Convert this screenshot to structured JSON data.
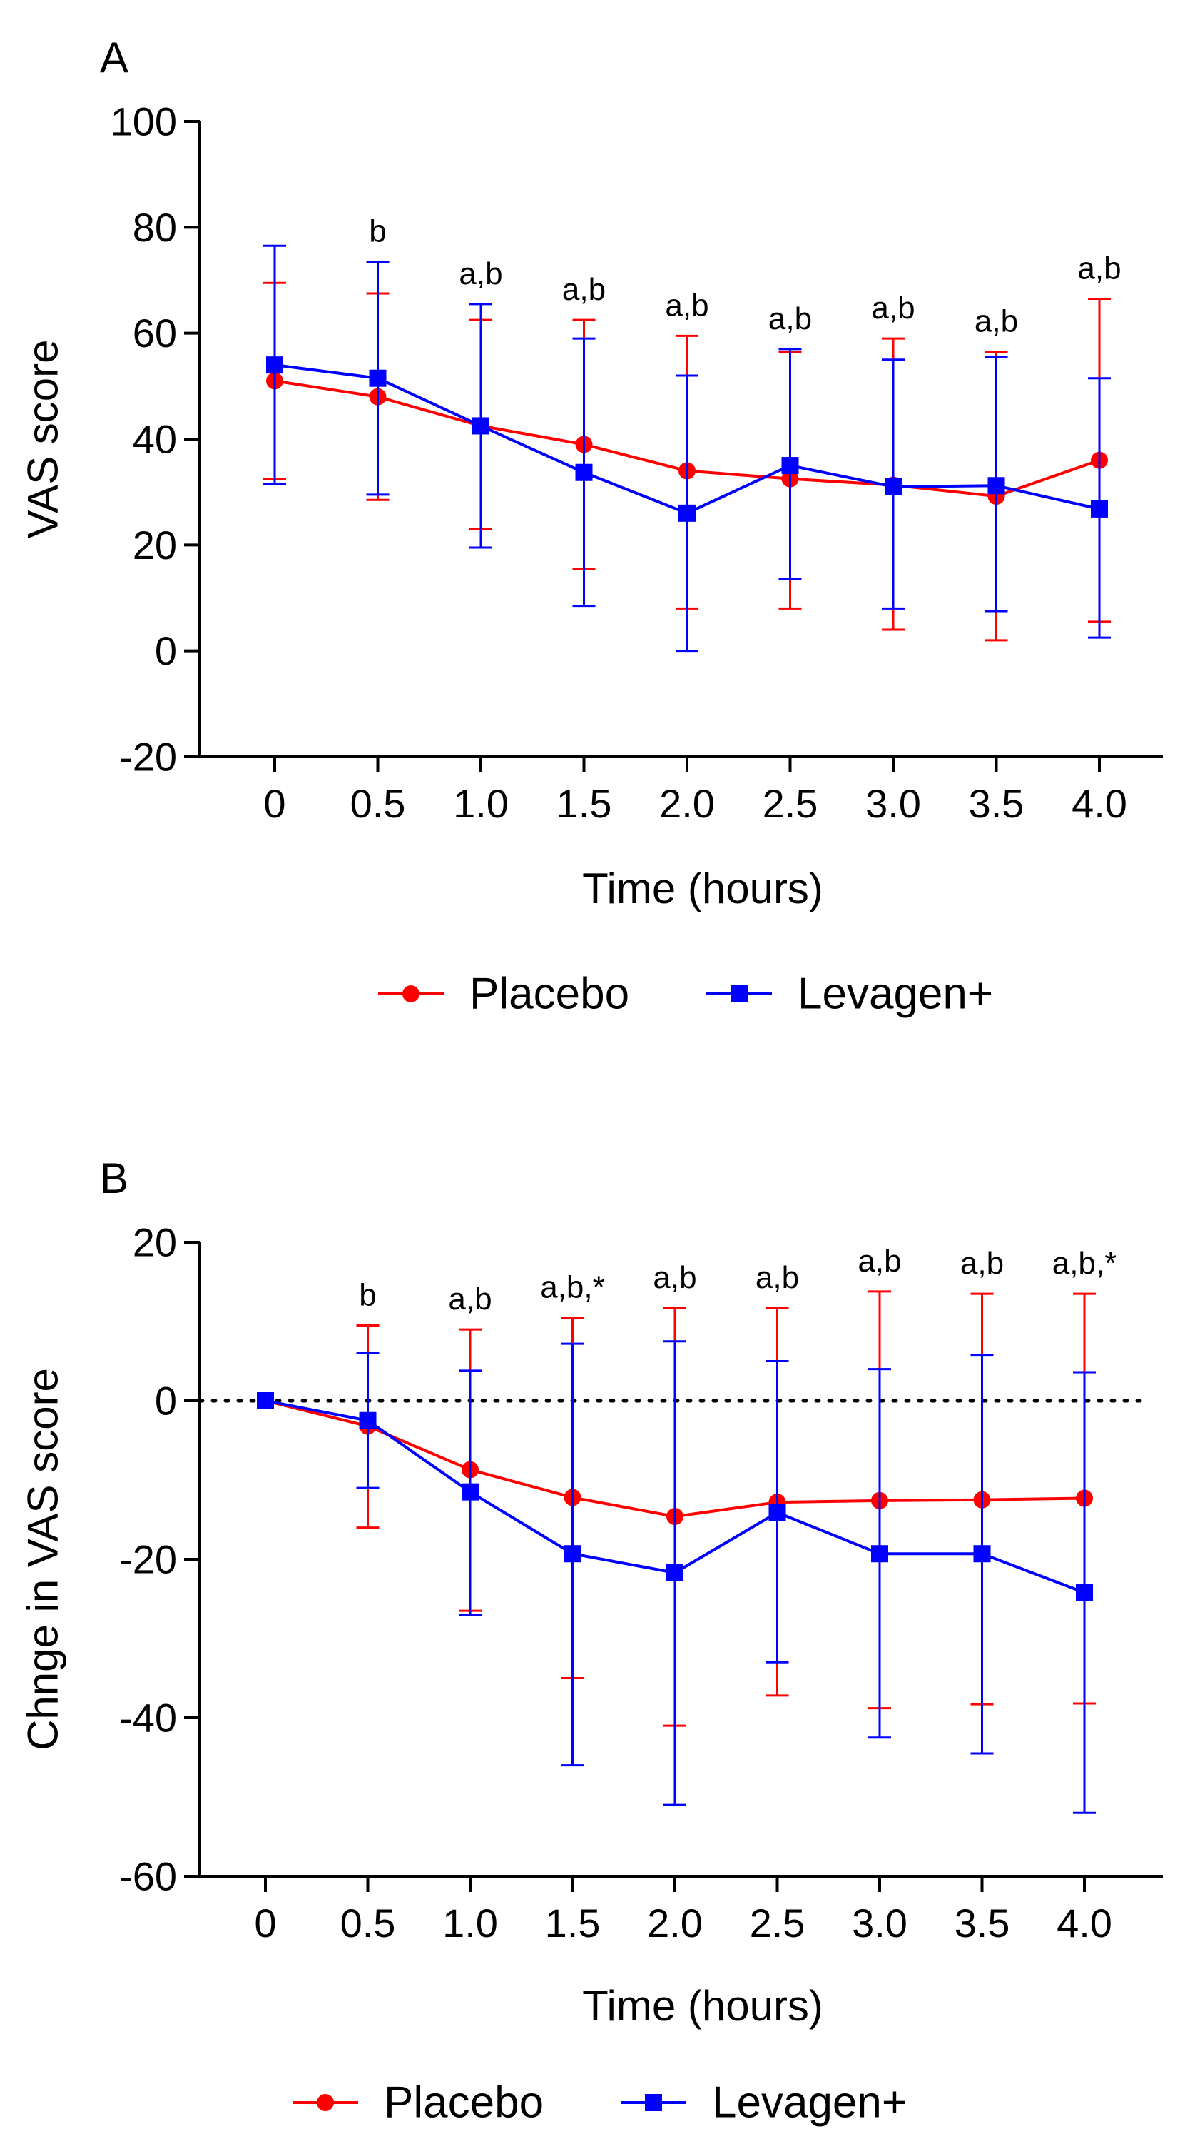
{
  "chart_data": [
    {
      "panel": "A",
      "type": "line",
      "xlabel": "Time (hours)",
      "ylabel": "VAS score",
      "x": [
        0,
        0.5,
        1.0,
        1.5,
        2.0,
        2.5,
        3.0,
        3.5,
        4.0
      ],
      "x_tick_labels": [
        "0",
        "0.5",
        "1.0",
        "1.5",
        "2.0",
        "2.5",
        "3.0",
        "3.5",
        "4.0"
      ],
      "ylim": [
        -20,
        100
      ],
      "y_ticks": [
        -20,
        0,
        20,
        40,
        60,
        80,
        100
      ],
      "annotations": [
        "",
        "b",
        "a,b",
        "a,b",
        "a,b",
        "a,b",
        "a,b",
        "a,b",
        "a,b"
      ],
      "reference_line": null,
      "series": [
        {
          "name": "Placebo",
          "color": "#ff0000",
          "marker": "circle",
          "values": [
            51,
            48,
            42.5,
            39,
            34,
            32.5,
            31.3,
            29.2,
            36
          ],
          "err_upper": [
            69.5,
            67.5,
            62.5,
            62.5,
            59.5,
            56.5,
            59,
            56.5,
            66.5
          ],
          "err_lower": [
            32.5,
            28.5,
            23,
            15.5,
            8,
            8,
            4,
            2,
            5.5
          ]
        },
        {
          "name": "Levagen+",
          "color": "#0000ff",
          "marker": "square",
          "values": [
            54,
            51.5,
            42.5,
            33.7,
            26,
            35,
            31,
            31.2,
            26.8
          ],
          "err_upper": [
            76.5,
            73.5,
            65.5,
            59,
            52,
            57,
            55,
            55.5,
            51.5
          ],
          "err_lower": [
            31.5,
            29.5,
            19.5,
            8.5,
            0,
            13.5,
            8,
            7.5,
            2.5
          ]
        }
      ]
    },
    {
      "panel": "B",
      "type": "line",
      "xlabel": "Time (hours)",
      "ylabel": "Chnge in VAS score",
      "x": [
        0,
        0.5,
        1.0,
        1.5,
        2.0,
        2.5,
        3.0,
        3.5,
        4.0
      ],
      "x_tick_labels": [
        "0",
        "0.5",
        "1.0",
        "1.5",
        "2.0",
        "2.5",
        "3.0",
        "3.5",
        "4.0"
      ],
      "ylim": [
        -60,
        20
      ],
      "y_ticks": [
        -60,
        -40,
        -20,
        0,
        20
      ],
      "annotations": [
        "",
        "b",
        "a,b",
        "a,b,*",
        "a,b",
        "a,b",
        "a,b",
        "a,b",
        "a,b,*"
      ],
      "reference_line": 0,
      "series": [
        {
          "name": "Placebo",
          "color": "#ff0000",
          "marker": "circle",
          "values": [
            0,
            -3.2,
            -8.7,
            -12.2,
            -14.6,
            -12.8,
            -12.6,
            -12.5,
            -12.3
          ],
          "err_upper": [
            0,
            9.5,
            9,
            10.5,
            11.7,
            11.7,
            13.8,
            13.5,
            13.5
          ],
          "err_lower": [
            0,
            -16,
            -26.5,
            -35,
            -41,
            -37.2,
            -38.8,
            -38.3,
            -38.2
          ]
        },
        {
          "name": "Levagen+",
          "color": "#0000ff",
          "marker": "square",
          "values": [
            0,
            -2.5,
            -11.5,
            -19.3,
            -21.7,
            -14.1,
            -19.3,
            -19.3,
            -24.2
          ],
          "err_upper": [
            0,
            6,
            3.8,
            7.2,
            7.5,
            5,
            4,
            5.8,
            3.6
          ],
          "err_lower": [
            0,
            -11,
            -27,
            -46,
            -51,
            -33,
            -42.5,
            -44.5,
            -52
          ]
        }
      ]
    }
  ]
}
